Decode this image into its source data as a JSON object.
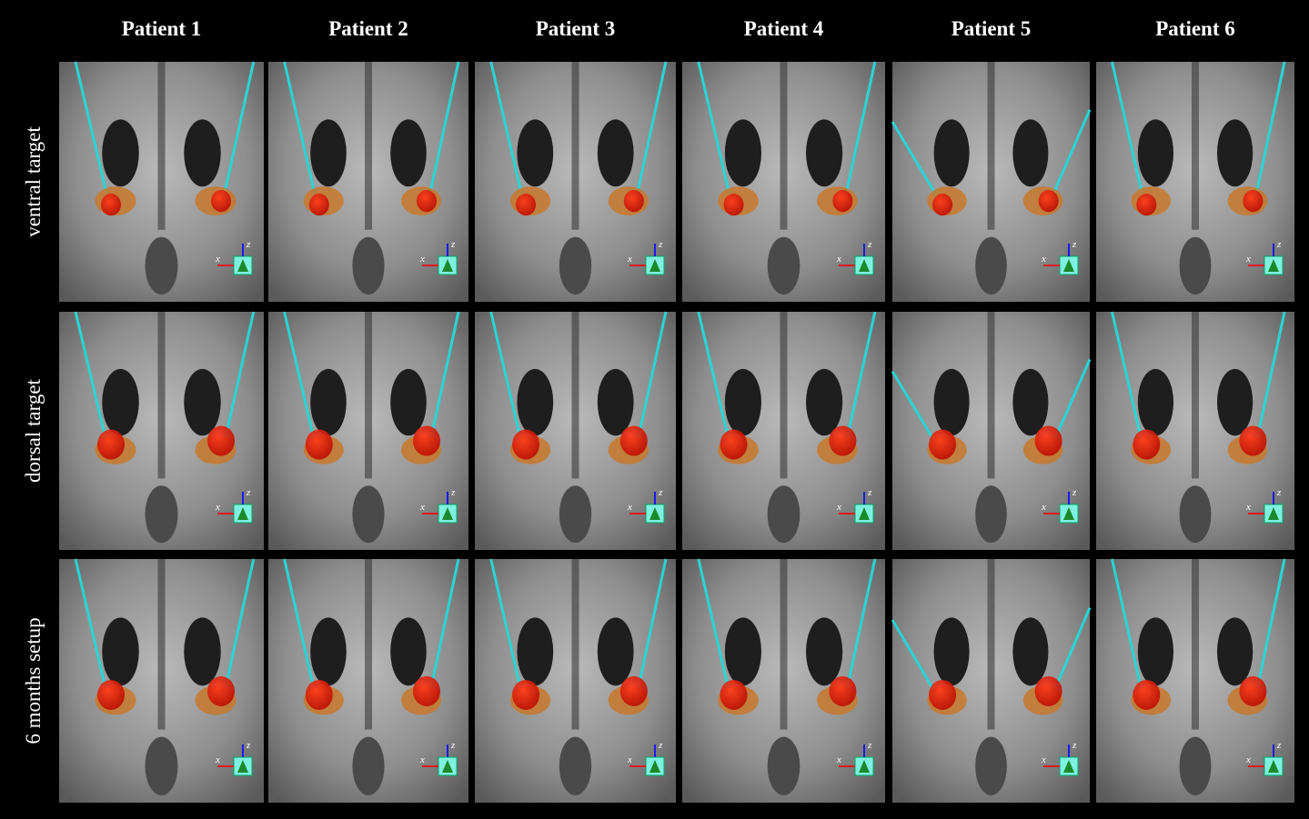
{
  "columns": [
    "Patient 1",
    "Patient 2",
    "Patient 3",
    "Patient 4",
    "Patient 5",
    "Patient 6"
  ],
  "rows": [
    "ventral target",
    "dorsal target",
    "6 months setup"
  ],
  "axis_icon": {
    "x": "x",
    "z": "z"
  }
}
